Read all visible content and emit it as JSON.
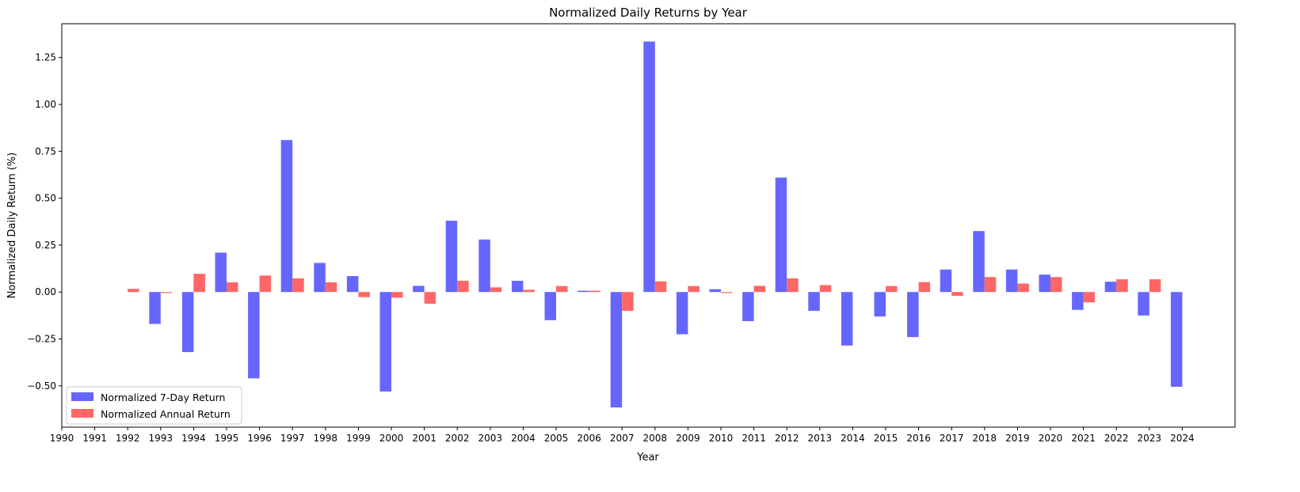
{
  "chart_data": {
    "type": "bar",
    "title": "Normalized Daily Returns by Year",
    "xlabel": "Year",
    "ylabel": "Normalized Daily Return (%)",
    "categories": [
      "1990",
      "1991",
      "1992",
      "1993",
      "1994",
      "1995",
      "1996",
      "1997",
      "1998",
      "1999",
      "2000",
      "2001",
      "2002",
      "2003",
      "2004",
      "2005",
      "2006",
      "2007",
      "2008",
      "2009",
      "2010",
      "2011",
      "2012",
      "2013",
      "2014",
      "2015",
      "2016",
      "2017",
      "2018",
      "2019",
      "2020",
      "2021",
      "2022",
      "2023",
      "2024"
    ],
    "ylim": [
      -0.72,
      1.43
    ],
    "yticks": [
      "−0.50",
      "−0.25",
      "0.00",
      "0.25",
      "0.50",
      "0.75",
      "1.00",
      "1.25"
    ],
    "ytick_values": [
      -0.5,
      -0.25,
      0,
      0.25,
      0.5,
      0.75,
      1.0,
      1.25
    ],
    "series": [
      {
        "name": "Normalized 7-Day Return",
        "color": "#6666ff",
        "values": [
          null,
          null,
          null,
          -0.17,
          -0.32,
          0.21,
          -0.46,
          0.81,
          0.155,
          0.085,
          -0.53,
          0.033,
          0.38,
          0.28,
          0.06,
          -0.15,
          0.007,
          -0.615,
          1.335,
          -0.225,
          0.015,
          -0.155,
          0.61,
          -0.1,
          -0.285,
          -0.13,
          -0.24,
          0.12,
          0.325,
          0.12,
          0.093,
          -0.095,
          0.055,
          -0.125,
          -0.505
        ]
      },
      {
        "name": "Normalized Annual Return",
        "color": "#ff6666",
        "values": [
          null,
          null,
          0.017,
          -0.005,
          0.097,
          0.052,
          0.088,
          0.073,
          0.052,
          -0.027,
          -0.03,
          -0.062,
          0.06,
          0.025,
          0.012,
          0.032,
          0.007,
          -0.1,
          0.057,
          0.032,
          -0.005,
          0.033,
          0.073,
          0.037,
          null,
          0.032,
          0.053,
          -0.02,
          0.08,
          0.045,
          0.08,
          -0.055,
          0.068,
          0.068,
          null
        ]
      }
    ],
    "legend_position": "lower-left",
    "grid": false
  }
}
